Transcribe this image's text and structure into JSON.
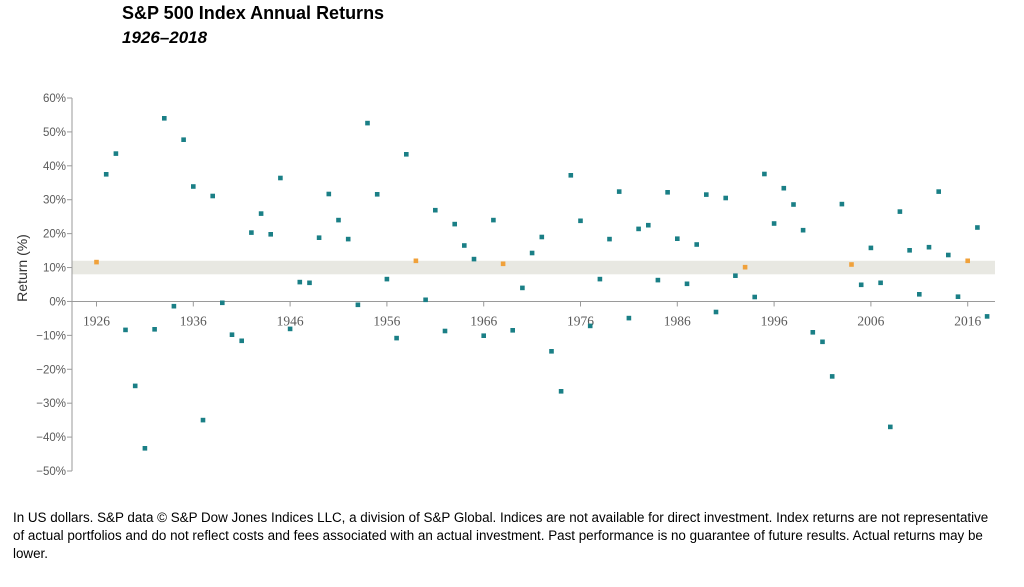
{
  "header": {
    "title": "S&P 500 Index Annual Returns",
    "subtitle": "1926–2018"
  },
  "footnote": "In US dollars. S&P data © S&P Dow Jones Indices LLC, a division of S&P Global. Indices are not available for direct investment. Index returns are not representative of actual portfolios and do not reflect costs and fees associated with an actual investment. Past performance is no guarantee of future results. Actual returns may be lower.",
  "colors": {
    "point": "#1a7f86",
    "highlight": "#f0a13a",
    "band": "#e8e8e2",
    "axis": "#9a9a9a",
    "tick_text": "#5a5a5a"
  },
  "chart_data": {
    "type": "scatter",
    "ylabel": "Return (%)",
    "ylim": [
      -50,
      60
    ],
    "xlim": [
      1926,
      2018
    ],
    "y_ticks": [
      60,
      50,
      40,
      30,
      20,
      10,
      0,
      -10,
      -20,
      -30,
      -40,
      -50
    ],
    "y_tick_labels": [
      "60%",
      "50%",
      "40%",
      "30%",
      "20%",
      "10%",
      "0%",
      "−10%",
      "−20%",
      "−30%",
      "−40%",
      "−50%"
    ],
    "x_ticks": [
      1926,
      1936,
      1946,
      1956,
      1966,
      1976,
      1986,
      1996,
      2006,
      2016
    ],
    "x_tick_labels": [
      "1926",
      "1936",
      "1946",
      "1956",
      "1966",
      "1976",
      "1986",
      "1996",
      "2006",
      "2016"
    ],
    "band": [
      8,
      12
    ],
    "highlight_years": [
      1926,
      1959,
      1968,
      1993,
      2004,
      2016
    ],
    "series": [
      {
        "x": [
          1926,
          1927,
          1928,
          1929,
          1930,
          1931,
          1932,
          1933,
          1934,
          1935,
          1936,
          1937,
          1938,
          1939,
          1940,
          1941,
          1942,
          1943,
          1944,
          1945,
          1946,
          1947,
          1948,
          1949,
          1950,
          1951,
          1952,
          1953,
          1954,
          1955,
          1956,
          1957,
          1958,
          1959,
          1960,
          1961,
          1962,
          1963,
          1964,
          1965,
          1966,
          1967,
          1968,
          1969,
          1970,
          1971,
          1972,
          1973,
          1974,
          1975,
          1976,
          1977,
          1978,
          1979,
          1980,
          1981,
          1982,
          1983,
          1984,
          1985,
          1986,
          1987,
          1988,
          1989,
          1990,
          1991,
          1992,
          1993,
          1994,
          1995,
          1996,
          1997,
          1998,
          1999,
          2000,
          2001,
          2002,
          2003,
          2004,
          2005,
          2006,
          2007,
          2008,
          2009,
          2010,
          2011,
          2012,
          2013,
          2014,
          2015,
          2016,
          2017,
          2018
        ],
        "y": [
          11.6,
          37.5,
          43.6,
          -8.4,
          -24.9,
          -43.3,
          -8.2,
          54.0,
          -1.4,
          47.7,
          33.9,
          -35.0,
          31.1,
          -0.4,
          -9.8,
          -11.6,
          20.3,
          25.9,
          19.8,
          36.4,
          -8.1,
          5.7,
          5.5,
          18.8,
          31.7,
          24.0,
          18.4,
          -1.0,
          52.6,
          31.6,
          6.6,
          -10.8,
          43.4,
          12.0,
          0.5,
          26.9,
          -8.7,
          22.8,
          16.5,
          12.5,
          -10.1,
          24.0,
          11.1,
          -8.5,
          4.0,
          14.3,
          19.0,
          -14.7,
          -26.5,
          37.2,
          23.8,
          -7.2,
          6.6,
          18.4,
          32.4,
          -4.9,
          21.4,
          22.5,
          6.3,
          32.2,
          18.5,
          5.2,
          16.8,
          31.5,
          -3.1,
          30.5,
          7.6,
          10.1,
          1.3,
          37.6,
          23.0,
          33.4,
          28.6,
          21.0,
          -9.1,
          -11.9,
          -22.1,
          28.7,
          10.9,
          4.9,
          15.8,
          5.5,
          -37.0,
          26.5,
          15.1,
          2.1,
          16.0,
          32.4,
          13.7,
          1.4,
          12.0,
          21.8,
          -4.4
        ]
      }
    ]
  }
}
